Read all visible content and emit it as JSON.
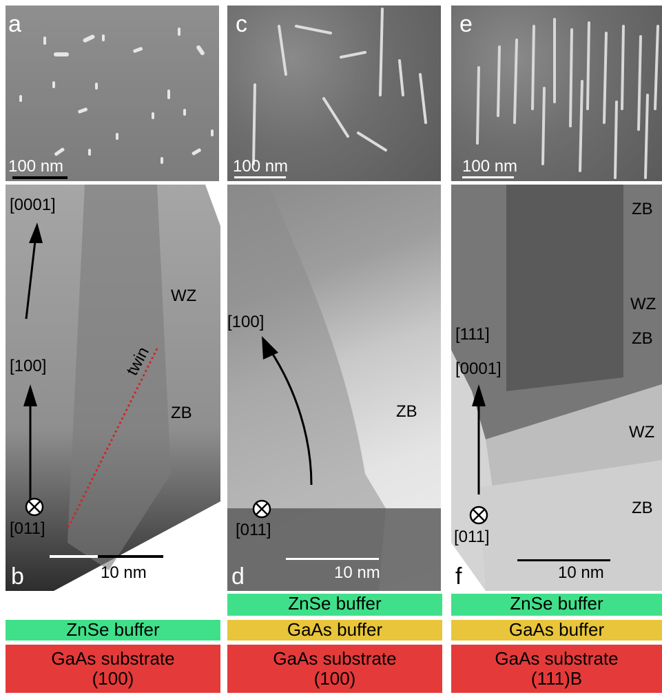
{
  "panels": {
    "a": {
      "label": "a",
      "scale": "100 nm"
    },
    "c": {
      "label": "c",
      "scale": "100 nm"
    },
    "e": {
      "label": "e",
      "scale": "100 nm"
    },
    "b": {
      "label": "b",
      "scale": "10 nm",
      "dir1": "[0001]",
      "dir2": "[100]",
      "zone": "[011]",
      "twin": "twin",
      "phase1": "WZ",
      "phase2": "ZB"
    },
    "d": {
      "label": "d",
      "scale": "10 nm",
      "dir1": "[100]",
      "zone": "[011]",
      "phase1": "ZB"
    },
    "f": {
      "label": "f",
      "scale": "10 nm",
      "dir1": "[111]",
      "dir2": "[0001]",
      "zone": "[011]",
      "phases": [
        "ZB",
        "WZ",
        "ZB",
        "WZ",
        "ZB"
      ]
    }
  },
  "stacks": {
    "left": {
      "buffer1": "ZnSe buffer",
      "substrate": "GaAs substrate",
      "orientation": "(100)"
    },
    "middle": {
      "buffer1": "ZnSe buffer",
      "buffer2": "GaAs buffer",
      "substrate": "GaAs substrate",
      "orientation": "(100)"
    },
    "right": {
      "buffer1": "ZnSe buffer",
      "buffer2": "GaAs buffer",
      "substrate": "GaAs substrate",
      "orientation": "(111)B"
    }
  }
}
